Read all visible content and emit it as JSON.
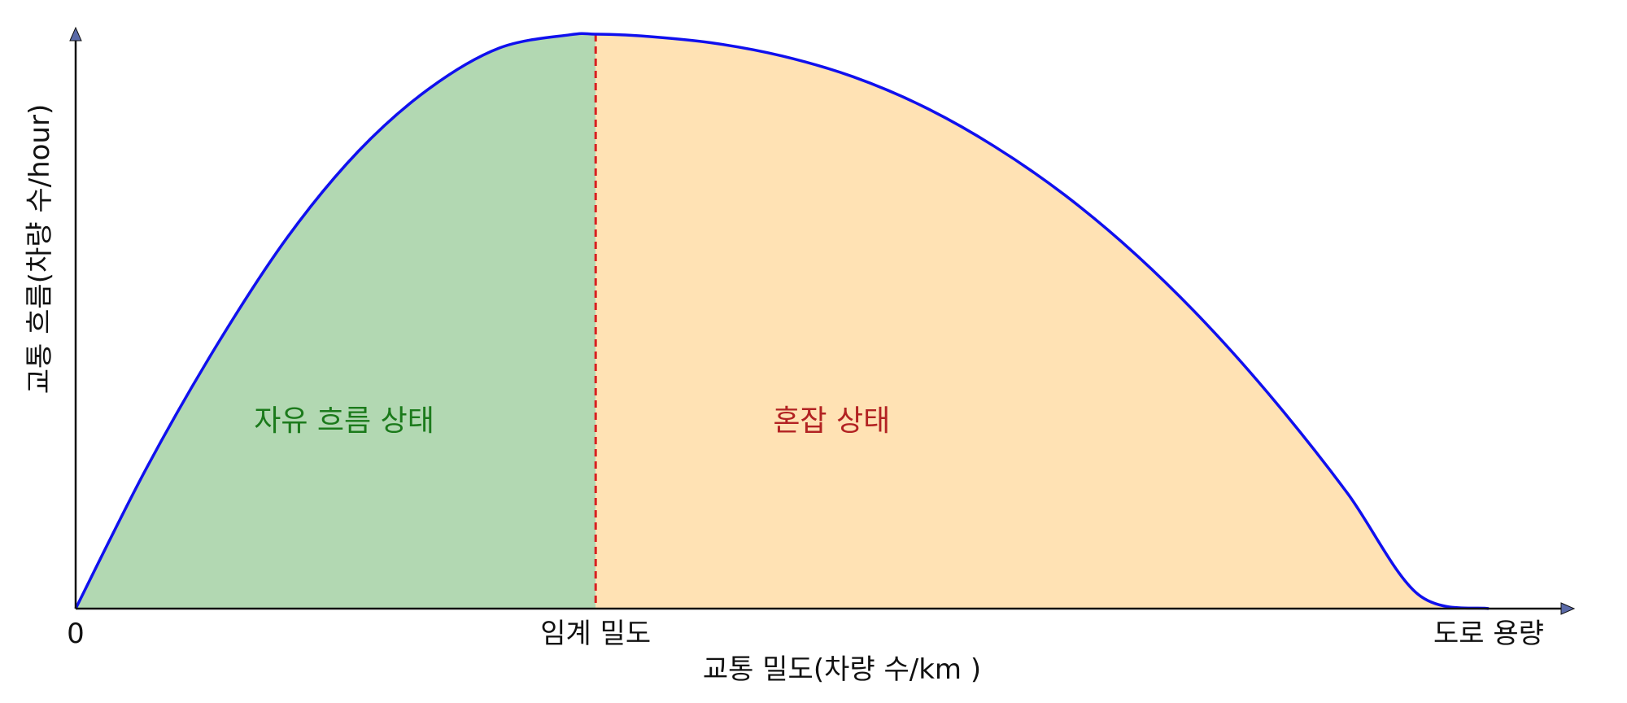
{
  "chart_data": {
    "type": "area",
    "title": "",
    "xlabel": "교통 밀도(차량 수/km )",
    "ylabel": "교통 흐름(차량 수/hour)",
    "xlim": [
      0,
      1.055
    ],
    "ylim": [
      0,
      1.1
    ],
    "grid": false,
    "legend": "none",
    "curve": {
      "x": [
        0,
        0.05,
        0.1,
        0.15,
        0.2,
        0.25,
        0.3,
        0.35,
        0.368,
        0.4,
        0.45,
        0.5,
        0.55,
        0.6,
        0.65,
        0.7,
        0.75,
        0.8,
        0.85,
        0.9,
        0.95,
        1.0
      ],
      "y": [
        0,
        0.244,
        0.459,
        0.647,
        0.796,
        0.905,
        0.976,
        0.999,
        1.0,
        0.997,
        0.985,
        0.962,
        0.926,
        0.874,
        0.805,
        0.72,
        0.617,
        0.496,
        0.357,
        0.201,
        0.025,
        0
      ],
      "color": "#1010ee"
    },
    "critical_density": 0.368,
    "x_ticks": [
      {
        "x": 0,
        "label": "0"
      },
      {
        "x": 0.368,
        "label": "임계 밀도"
      },
      {
        "x": 1.0,
        "label": "도로 용량"
      }
    ],
    "regions": [
      {
        "name": "자유 흐름 상태",
        "from": 0,
        "to": 0.368,
        "fill": "#b2d8b2",
        "text_color": "#1b7a1b",
        "label_x": 0.19,
        "label_y": 0.31
      },
      {
        "name": "혼잡 상태",
        "from": 0.368,
        "to": 1.0,
        "fill": "#ffe2b4",
        "text_color": "#b22222",
        "label_x": 0.535,
        "label_y": 0.31
      }
    ],
    "colors": {
      "axis": "#111111",
      "critical_line": "#d92020",
      "arrow_fill": "#5a6aa8"
    }
  }
}
